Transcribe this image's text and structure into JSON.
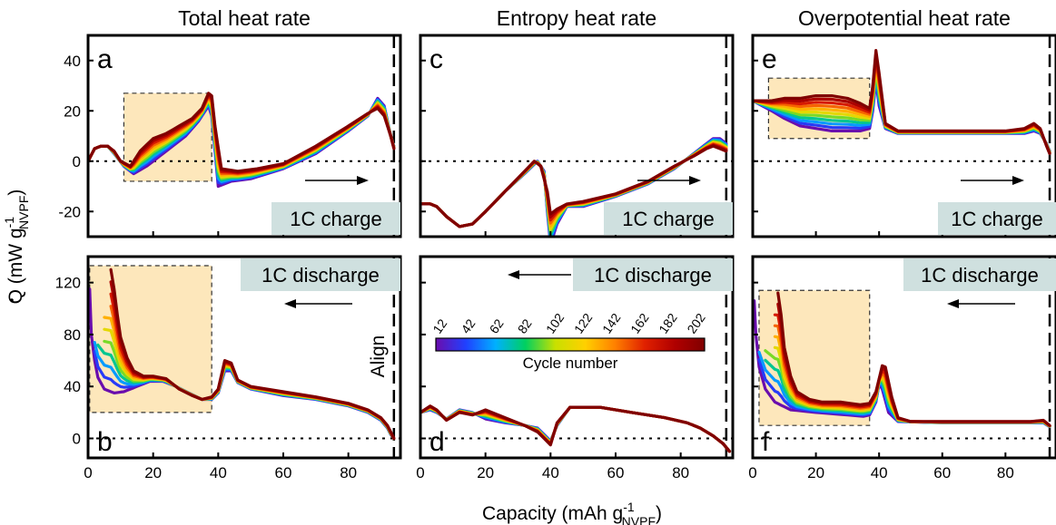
{
  "chart_data": {
    "type": "line",
    "shared": {
      "xlabel": "Capacity (mAh g",
      "xlabel_sup": "-1",
      "xlabel_sub": "NVPF",
      "xlabel_close": ")",
      "ylabel": "Q (mW g",
      "ylabel_sup": "-1",
      "ylabel_sub": "NVPF",
      "ylabel_close": ")",
      "xlim": [
        0,
        96
      ],
      "x_ticks": [
        0,
        20,
        40,
        60,
        80
      ],
      "align_label": "Align",
      "align_x": 94,
      "colorbar": {
        "label": "Cycle number",
        "ticks": [
          "12",
          "42",
          "62",
          "82",
          "102",
          "122",
          "142",
          "162",
          "182",
          "202"
        ],
        "colors": [
          "#6a0dad",
          "#2040ff",
          "#00b0ff",
          "#00d060",
          "#c8e000",
          "#ffd000",
          "#ff8000",
          "#e02000",
          "#b00000",
          "#800000"
        ]
      },
      "series_cycles": [
        12,
        32,
        52,
        72,
        92,
        112,
        132,
        152,
        172,
        192,
        202
      ]
    },
    "column_titles": [
      "Total heat rate",
      "Entropy heat rate",
      "Overpotential heat rate"
    ],
    "charge_ylim": [
      -30,
      50
    ],
    "charge_yticks": [
      -20,
      0,
      20,
      40
    ],
    "discharge_ylim": [
      -15,
      140
    ],
    "discharge_yticks": [
      0,
      40,
      80,
      120
    ],
    "panels": [
      {
        "letter": "a",
        "mode": "1C charge",
        "arrow": "right",
        "highlight_x": [
          11,
          38
        ],
        "highlight_y": [
          -8,
          27
        ],
        "first_cycle": [
          [
            0,
            0
          ],
          [
            2,
            5
          ],
          [
            4,
            6
          ],
          [
            6,
            6
          ],
          [
            8,
            3
          ],
          [
            11,
            -2
          ],
          [
            14,
            -5
          ],
          [
            18,
            -2
          ],
          [
            22,
            2
          ],
          [
            26,
            6
          ],
          [
            30,
            10
          ],
          [
            34,
            16
          ],
          [
            37,
            22
          ],
          [
            38,
            18
          ],
          [
            40,
            -10
          ],
          [
            44,
            -8
          ],
          [
            50,
            -7
          ],
          [
            60,
            -3
          ],
          [
            70,
            3
          ],
          [
            80,
            12
          ],
          [
            86,
            18
          ],
          [
            89,
            25
          ],
          [
            91,
            22
          ],
          [
            93,
            10
          ],
          [
            94,
            6
          ]
        ],
        "last_cycle": [
          [
            0,
            0
          ],
          [
            2,
            5
          ],
          [
            4,
            6
          ],
          [
            6,
            6
          ],
          [
            8,
            4
          ],
          [
            10,
            0
          ],
          [
            13,
            -2
          ],
          [
            16,
            4
          ],
          [
            20,
            9
          ],
          [
            24,
            11
          ],
          [
            28,
            14
          ],
          [
            32,
            17
          ],
          [
            35,
            21
          ],
          [
            37,
            27
          ],
          [
            38,
            26
          ],
          [
            39,
            14
          ],
          [
            41,
            -3
          ],
          [
            46,
            -4
          ],
          [
            52,
            -3
          ],
          [
            60,
            -1
          ],
          [
            70,
            6
          ],
          [
            80,
            14
          ],
          [
            86,
            19
          ],
          [
            89,
            21
          ],
          [
            91,
            18
          ],
          [
            93,
            10
          ],
          [
            94,
            5
          ]
        ]
      },
      {
        "letter": "b",
        "mode": "1C discharge",
        "arrow": "left",
        "highlight_x": [
          0.5,
          38
        ],
        "highlight_y": [
          20,
          133
        ],
        "first_cycle": [
          [
            0.5,
            115
          ],
          [
            1,
            80
          ],
          [
            2,
            60
          ],
          [
            3,
            47
          ],
          [
            5,
            38
          ],
          [
            8,
            35
          ],
          [
            11,
            36
          ],
          [
            15,
            40
          ],
          [
            19,
            44
          ],
          [
            23,
            44
          ],
          [
            27,
            40
          ],
          [
            31,
            35
          ],
          [
            35,
            30
          ],
          [
            38,
            30
          ],
          [
            40,
            35
          ],
          [
            42,
            52
          ],
          [
            44,
            52
          ],
          [
            46,
            43
          ],
          [
            50,
            38
          ],
          [
            60,
            33
          ],
          [
            70,
            30
          ],
          [
            80,
            25
          ],
          [
            86,
            20
          ],
          [
            90,
            14
          ],
          [
            92,
            8
          ],
          [
            93,
            3
          ],
          [
            94,
            0
          ]
        ],
        "last_cycle": [
          [
            7,
            130
          ],
          [
            8,
            115
          ],
          [
            9,
            95
          ],
          [
            10,
            78
          ],
          [
            12,
            62
          ],
          [
            14,
            52
          ],
          [
            17,
            48
          ],
          [
            20,
            48
          ],
          [
            24,
            46
          ],
          [
            28,
            38
          ],
          [
            32,
            33
          ],
          [
            35,
            30
          ],
          [
            38,
            32
          ],
          [
            40,
            38
          ],
          [
            42,
            60
          ],
          [
            44,
            58
          ],
          [
            46,
            45
          ],
          [
            50,
            40
          ],
          [
            60,
            36
          ],
          [
            70,
            32
          ],
          [
            80,
            27
          ],
          [
            86,
            22
          ],
          [
            90,
            16
          ],
          [
            92,
            10
          ],
          [
            93,
            5
          ],
          [
            94,
            0
          ]
        ]
      },
      {
        "letter": "c",
        "mode": "1C charge",
        "arrow": "right",
        "first_cycle": [
          [
            0,
            -17
          ],
          [
            3,
            -17
          ],
          [
            5,
            -18
          ],
          [
            8,
            -22
          ],
          [
            12,
            -26
          ],
          [
            16,
            -25
          ],
          [
            20,
            -20
          ],
          [
            26,
            -12
          ],
          [
            32,
            -5
          ],
          [
            36,
            0
          ],
          [
            38,
            -4
          ],
          [
            39,
            -20
          ],
          [
            40,
            -33
          ],
          [
            42,
            -25
          ],
          [
            45,
            -18
          ],
          [
            50,
            -18
          ],
          [
            60,
            -14
          ],
          [
            70,
            -9
          ],
          [
            78,
            -3
          ],
          [
            84,
            3
          ],
          [
            88,
            7
          ],
          [
            90,
            9
          ],
          [
            92,
            9
          ],
          [
            94,
            7
          ]
        ],
        "last_cycle": [
          [
            0,
            -17
          ],
          [
            3,
            -17
          ],
          [
            5,
            -18
          ],
          [
            8,
            -22
          ],
          [
            12,
            -26
          ],
          [
            16,
            -25
          ],
          [
            20,
            -20
          ],
          [
            26,
            -12
          ],
          [
            32,
            -4
          ],
          [
            35,
            0
          ],
          [
            37,
            -2
          ],
          [
            39,
            -12
          ],
          [
            40,
            -21
          ],
          [
            42,
            -19
          ],
          [
            45,
            -17
          ],
          [
            50,
            -16
          ],
          [
            60,
            -13
          ],
          [
            70,
            -8
          ],
          [
            78,
            -2
          ],
          [
            84,
            2
          ],
          [
            88,
            5
          ],
          [
            90,
            6
          ],
          [
            92,
            5
          ],
          [
            94,
            4
          ]
        ]
      },
      {
        "letter": "d",
        "mode": "1C discharge",
        "arrow": "left",
        "first_cycle": [
          [
            0,
            20
          ],
          [
            3,
            22
          ],
          [
            5,
            20
          ],
          [
            8,
            15
          ],
          [
            12,
            22
          ],
          [
            16,
            20
          ],
          [
            20,
            15
          ],
          [
            26,
            12
          ],
          [
            32,
            10
          ],
          [
            36,
            8
          ],
          [
            38,
            3
          ],
          [
            40,
            -2
          ],
          [
            42,
            10
          ],
          [
            46,
            24
          ],
          [
            55,
            24
          ],
          [
            65,
            20
          ],
          [
            75,
            16
          ],
          [
            82,
            12
          ],
          [
            86,
            8
          ],
          [
            90,
            2
          ],
          [
            93,
            -4
          ],
          [
            95,
            -10
          ]
        ],
        "last_cycle": [
          [
            0,
            20
          ],
          [
            3,
            25
          ],
          [
            5,
            22
          ],
          [
            8,
            14
          ],
          [
            12,
            20
          ],
          [
            16,
            18
          ],
          [
            20,
            22
          ],
          [
            26,
            16
          ],
          [
            32,
            10
          ],
          [
            36,
            5
          ],
          [
            38,
            0
          ],
          [
            40,
            -5
          ],
          [
            42,
            12
          ],
          [
            46,
            24
          ],
          [
            55,
            24
          ],
          [
            65,
            20
          ],
          [
            75,
            16
          ],
          [
            82,
            12
          ],
          [
            86,
            8
          ],
          [
            90,
            2
          ],
          [
            93,
            -4
          ],
          [
            95,
            -10
          ]
        ]
      },
      {
        "letter": "e",
        "mode": "1C charge",
        "arrow": "right",
        "highlight_x": [
          5,
          37
        ],
        "highlight_y": [
          9,
          33
        ],
        "first_cycle": [
          [
            0,
            24
          ],
          [
            3,
            22
          ],
          [
            6,
            20
          ],
          [
            10,
            17
          ],
          [
            15,
            14
          ],
          [
            20,
            13
          ],
          [
            25,
            12
          ],
          [
            30,
            12
          ],
          [
            34,
            12
          ],
          [
            37,
            13
          ],
          [
            38,
            20
          ],
          [
            39,
            32
          ],
          [
            40,
            22
          ],
          [
            42,
            13
          ],
          [
            46,
            11
          ],
          [
            60,
            11
          ],
          [
            70,
            11
          ],
          [
            80,
            11
          ],
          [
            86,
            11
          ],
          [
            89,
            12
          ],
          [
            91,
            11
          ],
          [
            93,
            7
          ],
          [
            94,
            4
          ]
        ],
        "last_cycle": [
          [
            0,
            24
          ],
          [
            3,
            24
          ],
          [
            6,
            24
          ],
          [
            10,
            25
          ],
          [
            15,
            25
          ],
          [
            20,
            26
          ],
          [
            25,
            26
          ],
          [
            30,
            25
          ],
          [
            34,
            23
          ],
          [
            37,
            21
          ],
          [
            38,
            30
          ],
          [
            39,
            44
          ],
          [
            40,
            35
          ],
          [
            42,
            15
          ],
          [
            46,
            12
          ],
          [
            60,
            12
          ],
          [
            70,
            12
          ],
          [
            80,
            12
          ],
          [
            86,
            13
          ],
          [
            89,
            15
          ],
          [
            91,
            13
          ],
          [
            93,
            6
          ],
          [
            94,
            3
          ]
        ]
      },
      {
        "letter": "f",
        "mode": "1C discharge",
        "arrow": "left",
        "highlight_x": [
          2,
          37
        ],
        "highlight_y": [
          10,
          114
        ],
        "first_cycle": [
          [
            0.5,
            106
          ],
          [
            1,
            80
          ],
          [
            2,
            55
          ],
          [
            4,
            38
          ],
          [
            7,
            28
          ],
          [
            12,
            22
          ],
          [
            20,
            20
          ],
          [
            30,
            18
          ],
          [
            35,
            17
          ],
          [
            37,
            18
          ],
          [
            39,
            28
          ],
          [
            40,
            42
          ],
          [
            41,
            38
          ],
          [
            43,
            20
          ],
          [
            46,
            13
          ],
          [
            60,
            12
          ],
          [
            70,
            12
          ],
          [
            80,
            12
          ],
          [
            88,
            12
          ],
          [
            92,
            12
          ],
          [
            94,
            9
          ]
        ],
        "last_cycle": [
          [
            8,
            112
          ],
          [
            9,
            95
          ],
          [
            10,
            70
          ],
          [
            12,
            48
          ],
          [
            14,
            36
          ],
          [
            18,
            30
          ],
          [
            22,
            28
          ],
          [
            28,
            28
          ],
          [
            34,
            26
          ],
          [
            37,
            27
          ],
          [
            39,
            36
          ],
          [
            41,
            56
          ],
          [
            42,
            55
          ],
          [
            44,
            32
          ],
          [
            46,
            16
          ],
          [
            50,
            13
          ],
          [
            60,
            13
          ],
          [
            70,
            13
          ],
          [
            80,
            13
          ],
          [
            88,
            13
          ],
          [
            92,
            14
          ],
          [
            94,
            10
          ]
        ]
      }
    ]
  }
}
